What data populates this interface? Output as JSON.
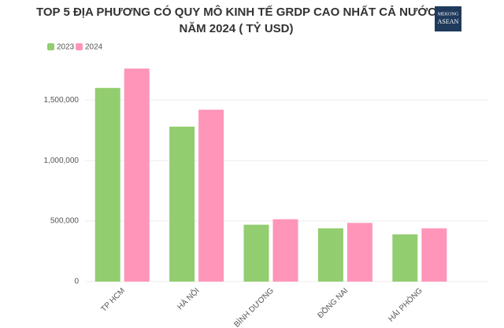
{
  "chart_data": {
    "type": "bar",
    "title": [
      "TOP 5 ĐỊA PHƯƠNG CÓ QUY MÔ KINH TẾ GRDP CAO NHẤT CẢ NƯỚC",
      "NĂM 2024 ( TỶ USD)"
    ],
    "logo": [
      "MEKONG",
      "ASEAN"
    ],
    "categories": [
      "TP HCM",
      "HÀ NỘI",
      "BÌNH DƯƠNG",
      "ĐỒNG NAI",
      "HẢI PHÒNG"
    ],
    "series": [
      {
        "name": "2023",
        "color": "#92cd70",
        "values": [
          1600000,
          1280000,
          470000,
          440000,
          390000
        ]
      },
      {
        "name": "2024",
        "color": "#ff95b9",
        "values": [
          1760000,
          1420000,
          515000,
          485000,
          440000
        ]
      }
    ],
    "ylim": [
      0,
      1800000
    ],
    "yticks": [
      0,
      {
        "value": 500000,
        "label": "500,000"
      },
      {
        "value": 1000000,
        "label": "1,000,000"
      },
      {
        "value": 1500000,
        "label": "1,500,000"
      }
    ],
    "grid": true,
    "legend": "top-left"
  }
}
